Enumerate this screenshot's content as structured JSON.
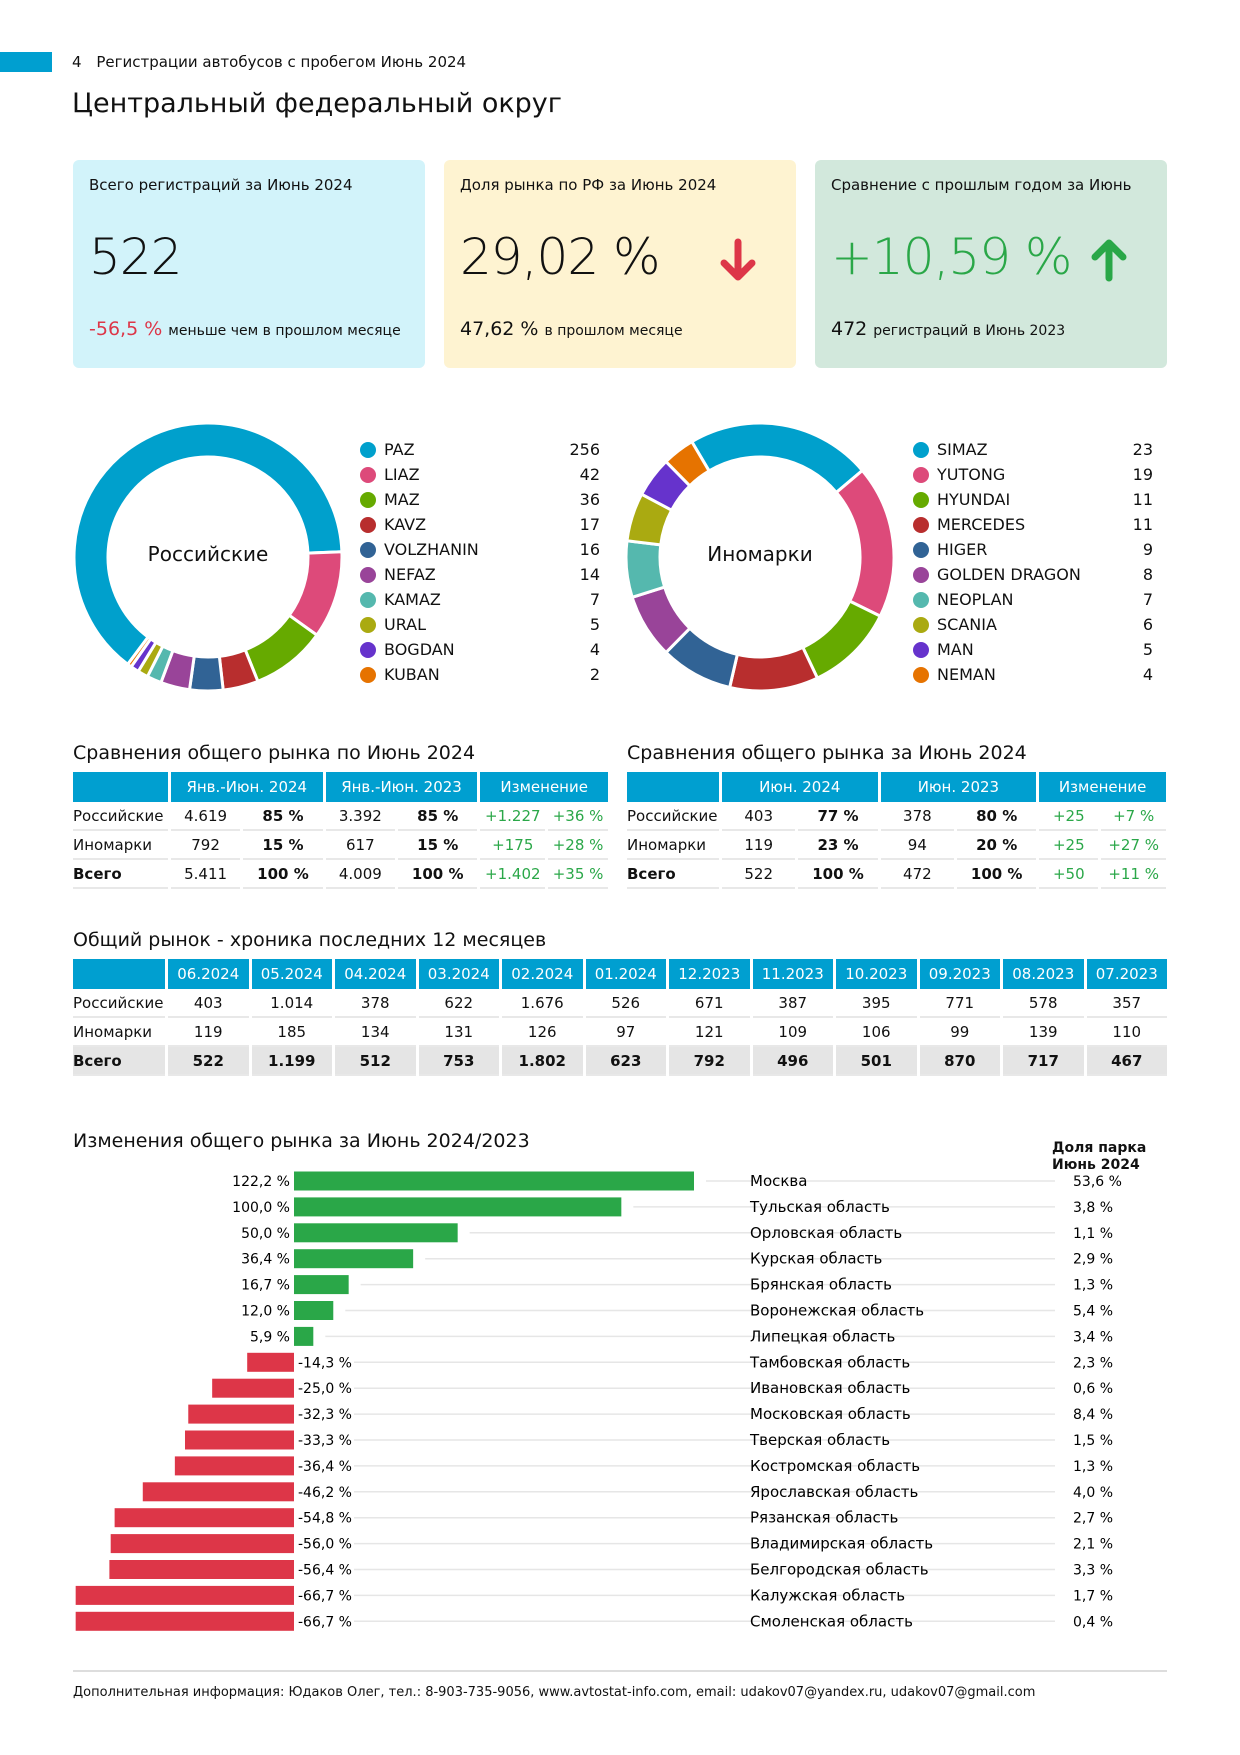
{
  "header": {
    "page_number": "4",
    "report_title": "Регистрации автобусов с пробегом Июнь 2024",
    "region_title": "Центральный федеральный округ"
  },
  "cards": [
    {
      "title": "Всего регистраций за Июнь 2024",
      "value": "522",
      "sub_value": "-56,5 %",
      "sub_text": "меньше чем в прошлом месяце"
    },
    {
      "title": "Доля рынка по РФ за Июнь 2024",
      "value": "29,02 %",
      "sub_value": "47,62 %",
      "sub_text": "в прошлом месяце",
      "arrow": "arrow-down-icon"
    },
    {
      "title": "Сравнение с прошлым годом за Июнь",
      "value": "+10,59 %",
      "sub_value": "472",
      "sub_text": "регистраций в Июнь 2023",
      "arrow": "arrow-up-icon"
    }
  ],
  "colors": {
    "accent": "#009fd0",
    "positive": "#2aa748",
    "negative": "#dd3648"
  },
  "chart_data": [
    {
      "type": "pie",
      "title": "Российские",
      "categories": [
        "PAZ",
        "LIAZ",
        "MAZ",
        "KAVZ",
        "VOLZHANIN",
        "NEFAZ",
        "KAMAZ",
        "URAL",
        "BOGDAN",
        "KUBAN"
      ],
      "values": [
        256,
        42,
        36,
        17,
        16,
        14,
        7,
        5,
        4,
        2
      ],
      "colors": [
        "#00a0cc",
        "#dd4a7a",
        "#66aa00",
        "#b82e2e",
        "#316395",
        "#994499",
        "#55b8ae",
        "#aaaa11",
        "#6633cc",
        "#e67300"
      ]
    },
    {
      "type": "pie",
      "title": "Иномарки",
      "categories": [
        "SIMAZ",
        "YUTONG",
        "HYUNDAI",
        "MERCEDES",
        "HIGER",
        "GOLDEN DRAGON",
        "NEOPLAN",
        "SCANIA",
        "MAN",
        "NEMAN"
      ],
      "values": [
        23,
        19,
        11,
        11,
        9,
        8,
        7,
        6,
        5,
        4
      ],
      "colors": [
        "#00a0cc",
        "#dd4a7a",
        "#66aa00",
        "#b82e2e",
        "#316395",
        "#994499",
        "#55b8ae",
        "#aaaa11",
        "#6633cc",
        "#e67300"
      ]
    },
    {
      "type": "bar",
      "title": "Изменения общего рынка за Июнь 2024/2023",
      "share_header": [
        "Доля парка",
        "Июнь 2024"
      ],
      "categories": [
        "Москва",
        "Тульская область",
        "Орловская область",
        "Курская область",
        "Брянская область",
        "Воронежская область",
        "Липецкая область",
        "Тамбовская область",
        "Ивановская область",
        "Московская область",
        "Тверская область",
        "Костромская область",
        "Ярославская область",
        "Рязанская область",
        "Владимирская область",
        "Белгородская область",
        "Калужская область",
        "Смоленская область"
      ],
      "values": [
        122.2,
        100.0,
        50.0,
        36.4,
        16.7,
        12.0,
        5.9,
        -14.3,
        -25.0,
        -32.3,
        -33.3,
        -36.4,
        -46.2,
        -54.8,
        -56.0,
        -56.4,
        -66.7,
        -66.7
      ],
      "value_labels": [
        "122,2 %",
        "100,0 %",
        "50,0 %",
        "36,4 %",
        "16,7 %",
        "12,0 %",
        "5,9 %",
        "-14,3 %",
        "-25,0 %",
        "-32,3 %",
        "-33,3 %",
        "-36,4 %",
        "-46,2 %",
        "-54,8 %",
        "-56,0 %",
        "-56,4 %",
        "-66,7 %",
        "-66,7 %"
      ],
      "shares": [
        "53,6 %",
        "3,8 %",
        "1,1 %",
        "2,9 %",
        "1,3 %",
        "5,4 %",
        "3,4 %",
        "2,3 %",
        "0,6 %",
        "8,4 %",
        "1,5 %",
        "1,3 %",
        "4,0 %",
        "2,7 %",
        "2,1 %",
        "3,3 %",
        "1,7 %",
        "0,4 %"
      ],
      "xlabel": "",
      "ylabel": "",
      "xlim": [
        -66.7,
        122.2
      ]
    }
  ],
  "table_ytd": {
    "title": "Сравнения общего рынка по Июнь 2024",
    "headers": [
      "Янв.-Июн. 2024",
      "Янв.-Июн. 2023",
      "Изменение"
    ],
    "rows": [
      {
        "label": "Российские",
        "c1": "4.619",
        "p1": "85 %",
        "c2": "3.392",
        "p2": "85 %",
        "d": "+1.227",
        "dp": "+36 %"
      },
      {
        "label": "Иномарки",
        "c1": "792",
        "p1": "15 %",
        "c2": "617",
        "p2": "15 %",
        "d": "+175",
        "dp": "+28 %"
      },
      {
        "label": "Всего",
        "c1": "5.411",
        "p1": "100 %",
        "c2": "4.009",
        "p2": "100 %",
        "d": "+1.402",
        "dp": "+35 %"
      }
    ]
  },
  "table_month": {
    "title": "Сравнения общего рынка за Июнь 2024",
    "headers": [
      "Июн. 2024",
      "Июн. 2023",
      "Изменение"
    ],
    "rows": [
      {
        "label": "Российские",
        "c1": "403",
        "p1": "77 %",
        "c2": "378",
        "p2": "80 %",
        "d": "+25",
        "dp": "+7 %"
      },
      {
        "label": "Иномарки",
        "c1": "119",
        "p1": "23 %",
        "c2": "94",
        "p2": "20 %",
        "d": "+25",
        "dp": "+27 %"
      },
      {
        "label": "Всего",
        "c1": "522",
        "p1": "100 %",
        "c2": "472",
        "p2": "100 %",
        "d": "+50",
        "dp": "+11 %"
      }
    ]
  },
  "table_history": {
    "title": "Общий рынок - хроника последних 12 месяцев",
    "months": [
      "06.2024",
      "05.2024",
      "04.2024",
      "03.2024",
      "02.2024",
      "01.2024",
      "12.2023",
      "11.2023",
      "10.2023",
      "09.2023",
      "08.2023",
      "07.2023"
    ],
    "rows": [
      {
        "label": "Российские",
        "values": [
          "403",
          "1.014",
          "378",
          "622",
          "1.676",
          "526",
          "671",
          "387",
          "395",
          "771",
          "578",
          "357"
        ]
      },
      {
        "label": "Иномарки",
        "values": [
          "119",
          "185",
          "134",
          "131",
          "126",
          "97",
          "121",
          "109",
          "106",
          "99",
          "139",
          "110"
        ]
      },
      {
        "label": "Всего",
        "values": [
          "522",
          "1.199",
          "512",
          "753",
          "1.802",
          "623",
          "792",
          "496",
          "501",
          "870",
          "717",
          "467"
        ]
      }
    ]
  },
  "footer": {
    "text": "Дополнительная информация: Юдаков Олег, тел.: 8-903-735-9056, www.avtostat-info.com, email: udakov07@yandex.ru, udakov07@gmail.com"
  }
}
